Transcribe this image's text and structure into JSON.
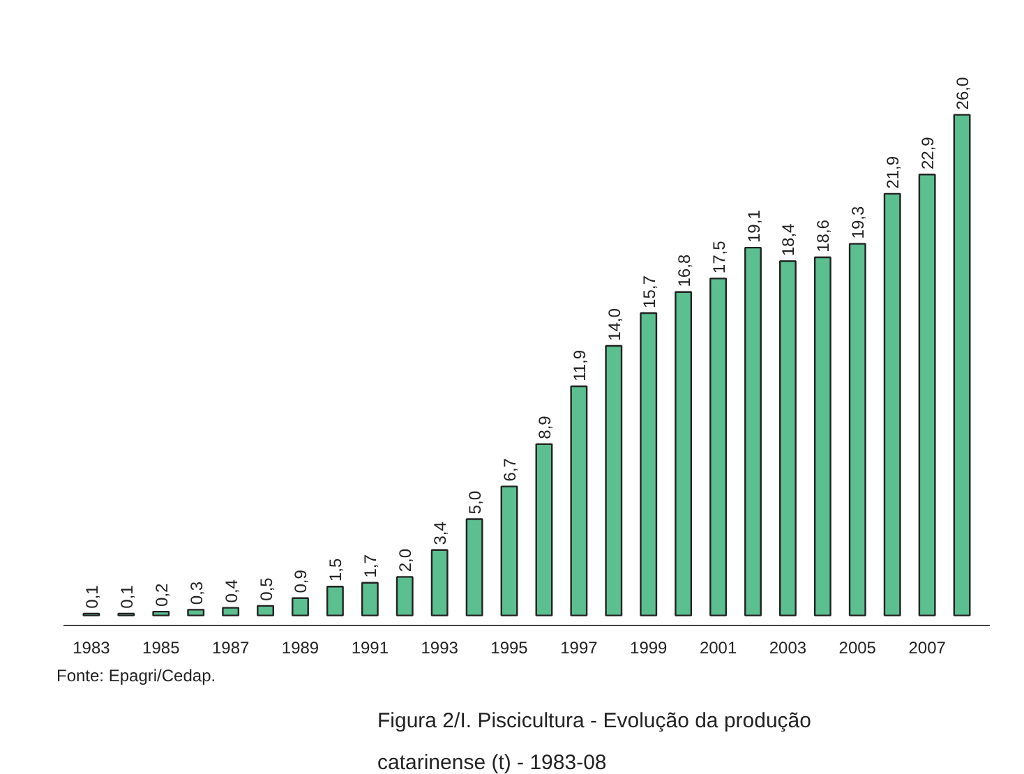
{
  "chart_data": {
    "type": "bar",
    "title": "Figura 2/I.  Piscicultura - Evolução da produção catarinense (t) - 1983-08",
    "annotations": [
      "Fonte: Epagri/Cedap."
    ],
    "categories": [
      "1983",
      null,
      "1985",
      null,
      "1987",
      null,
      "1989",
      null,
      "1991",
      null,
      "1993",
      null,
      "1995",
      null,
      "1997",
      null,
      "1999",
      null,
      "2001",
      null,
      "2003",
      null,
      "2005",
      null,
      "2007",
      null
    ],
    "values": [
      0.1,
      0.1,
      0.2,
      0.3,
      0.4,
      0.5,
      0.9,
      1.5,
      1.7,
      2.0,
      3.4,
      5.0,
      6.7,
      8.9,
      11.9,
      14.0,
      15.7,
      16.8,
      17.5,
      19.1,
      18.4,
      18.6,
      19.3,
      21.9,
      22.9,
      26.0
    ],
    "value_labels": [
      "0,1",
      "0,1",
      "0,2",
      "0,3",
      "0,4",
      "0,5",
      "0,9",
      "1,5",
      "1,7",
      "2,0",
      "3,4",
      "5,0",
      "6,7",
      "8,9",
      "11,9",
      "14,0",
      "15,7",
      "16,8",
      "17,5",
      "19,1",
      "18,4",
      "18,6",
      "19,3",
      "21,9",
      "22,9",
      "26,0"
    ],
    "color": "#5bbf8f",
    "grid": false
  }
}
